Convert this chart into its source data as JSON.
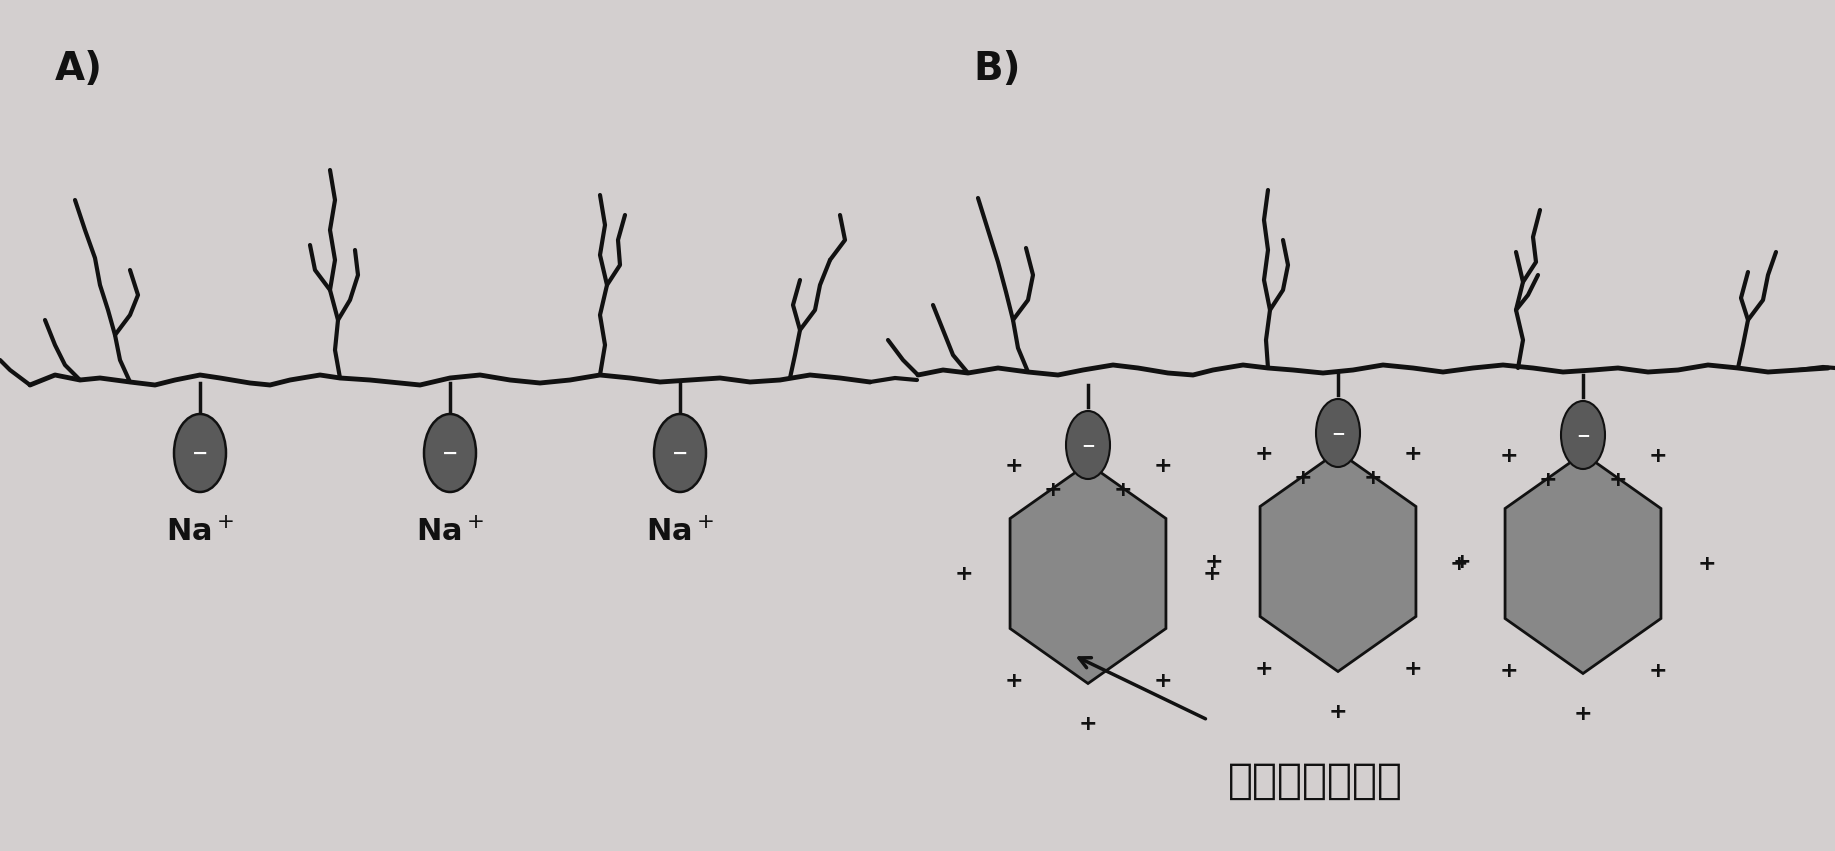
{
  "background_color": "#d3cfcf",
  "line_color": "#111111",
  "line_width": 3.0,
  "ellipse_facecolor": "#5a5a5a",
  "ellipse_edgecolor": "#111111",
  "hex_facecolor": "#888888",
  "hex_edgecolor": "#111111",
  "label_A": "A)",
  "label_B": "B)",
  "ldh_label": "层状双氢氧化物",
  "font_size_label": 28,
  "font_size_na": 22,
  "font_size_ldh": 30,
  "font_size_plus": 16,
  "font_size_minus": 14
}
